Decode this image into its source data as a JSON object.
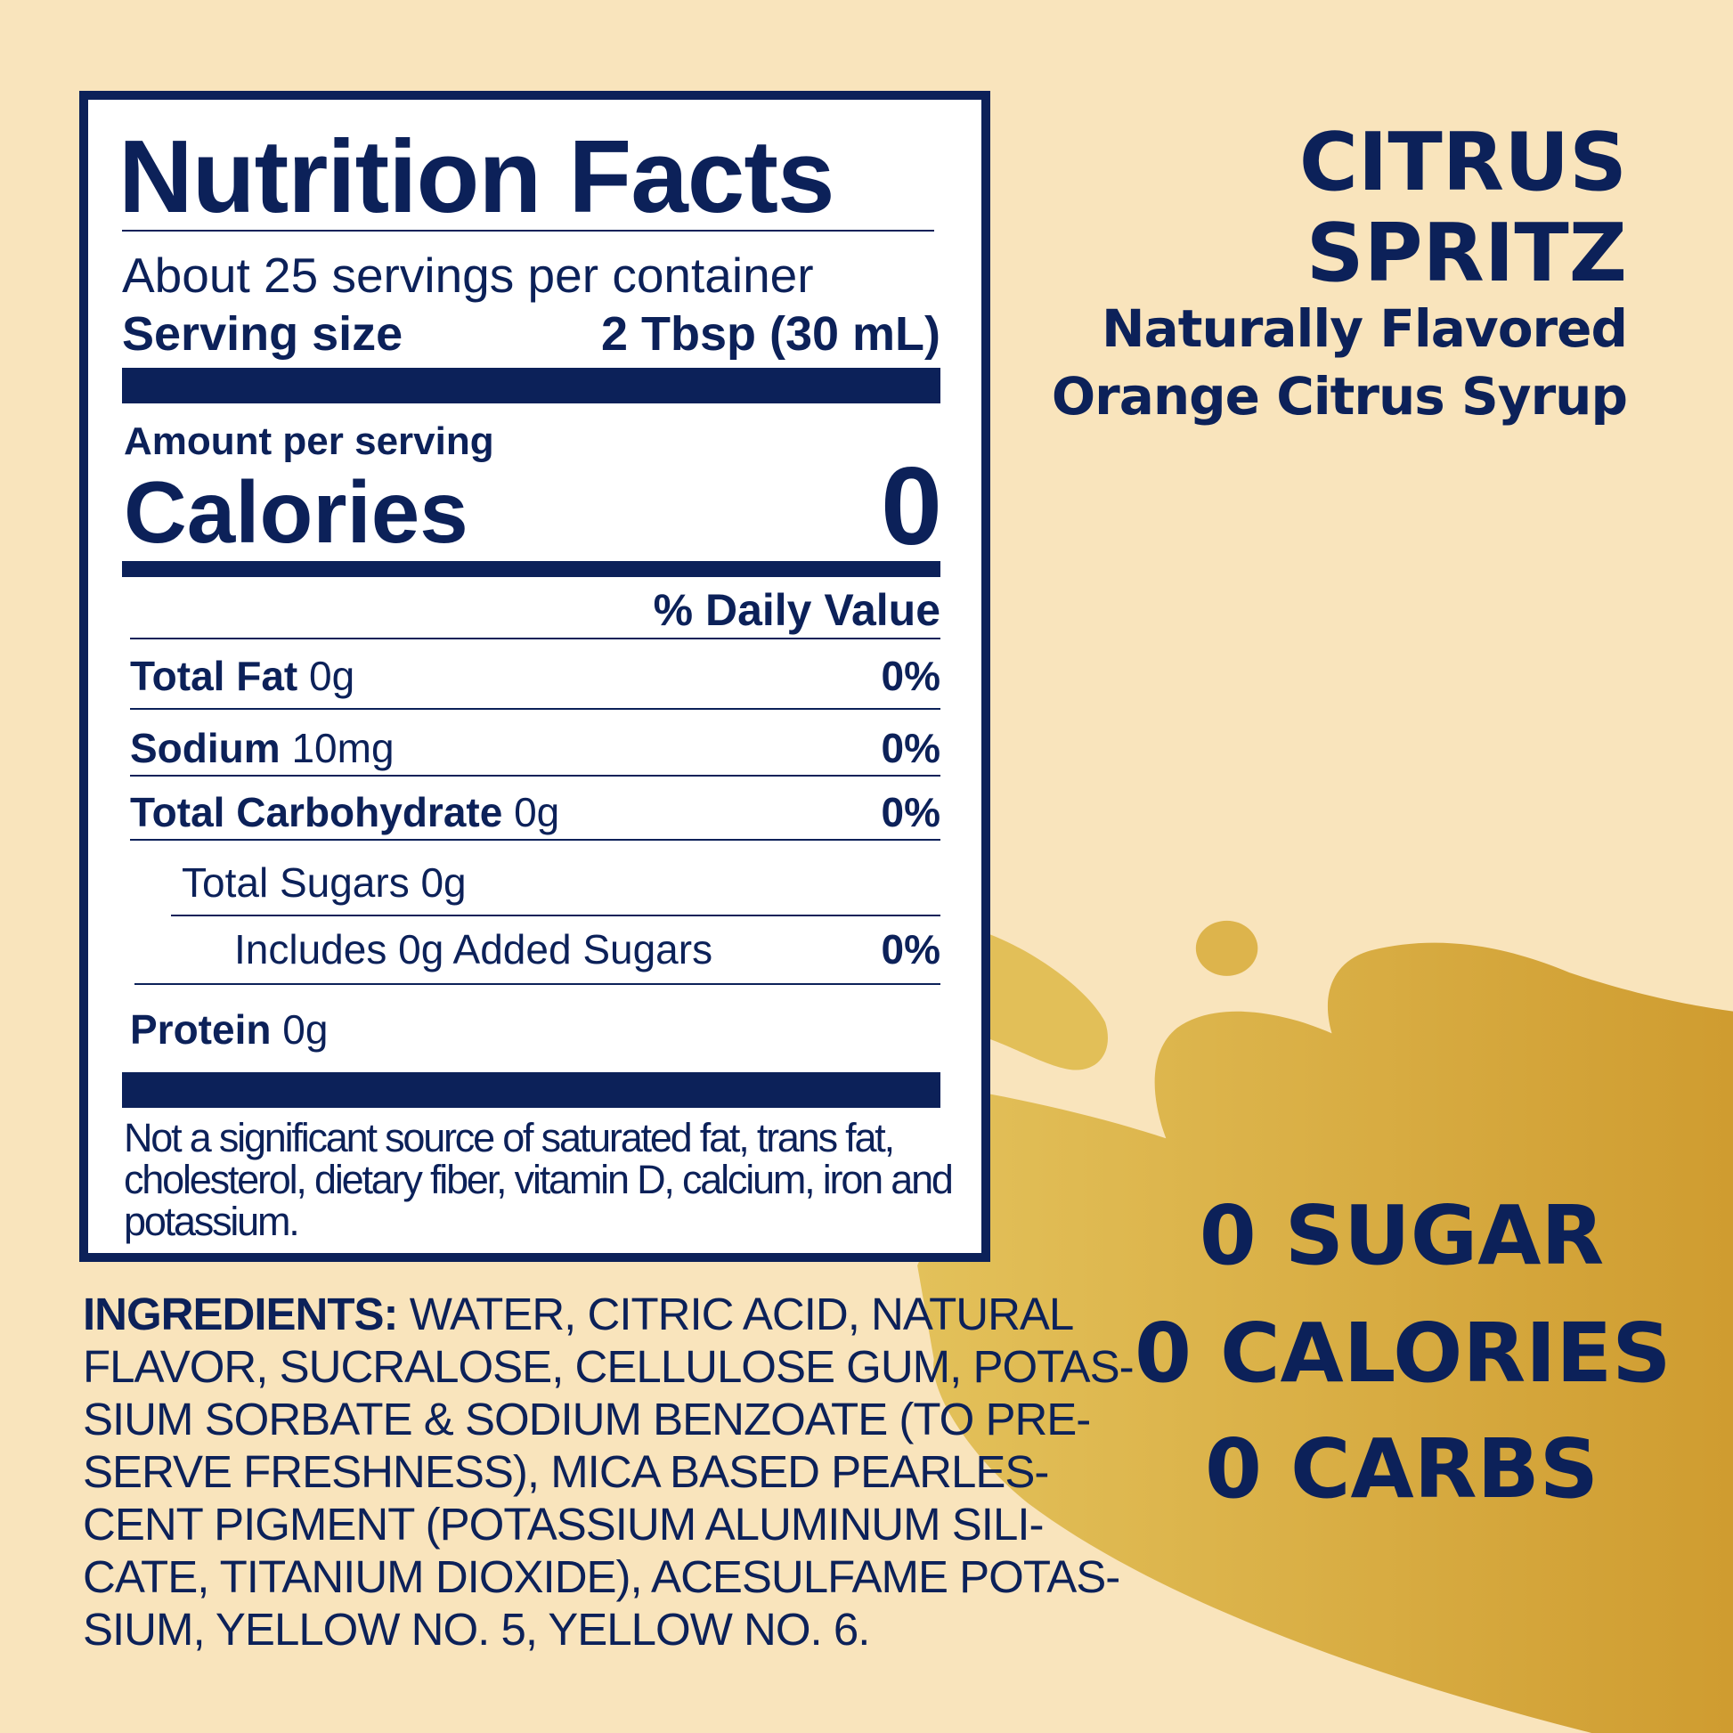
{
  "colors": {
    "background": "#f9e4bc",
    "navy": "#0c2159",
    "splash_light": "#e3c15a",
    "splash_dark": "#cf9c30"
  },
  "label": {
    "title": "Nutrition Facts",
    "servings": "About 25 servings per container",
    "serving_size_label": "Serving size",
    "serving_size_value": "2 Tbsp (30 mL)",
    "amount_per_serving": "Amount per serving",
    "calories_label": "Calories",
    "calories_value": "0",
    "dv_header": "% Daily Value",
    "rows": [
      {
        "name": "Total Fat",
        "amount": "0g",
        "dv": "0%"
      },
      {
        "name": "Sodium",
        "amount": "10mg",
        "dv": "0%"
      },
      {
        "name": "Total Carbohydrate",
        "amount": "0g",
        "dv": "0%"
      },
      {
        "name": "Total Sugars 0g",
        "amount": "",
        "dv": ""
      },
      {
        "name": "Includes 0g Added Sugars",
        "amount": "",
        "dv": "0%"
      },
      {
        "name": "Protein",
        "amount": "0g",
        "dv": ""
      }
    ],
    "footnote": [
      "Not a significant source of saturated fat, trans fat,",
      "cholesterol, dietary fiber, vitamin D, calcium, iron and",
      "potassium."
    ]
  },
  "ingredients": {
    "heading": "INGREDIENTS:",
    "lines": [
      " WATER, CITRIC ACID, NATURAL",
      "FLAVOR, SUCRALOSE, CELLULOSE GUM, POTAS-",
      "SIUM SORBATE & SODIUM BENZOATE (TO PRE-",
      "SERVE FRESHNESS), MICA BASED PEARLES-",
      "CENT PIGMENT (POTASSIUM ALUMINUM SILI-",
      "CATE, TITANIUM DIOXIDE), ACESULFAME POTAS-",
      "SIUM, YELLOW NO. 5, YELLOW NO. 6."
    ]
  },
  "product": {
    "name_line1": "CITRUS",
    "name_line2": "SPRITZ",
    "desc_line1": "Naturally Flavored",
    "desc_line2": "Orange Citrus Syrup"
  },
  "claims": [
    "0 SUGAR",
    "0 CALORIES",
    "0 CARBS"
  ]
}
